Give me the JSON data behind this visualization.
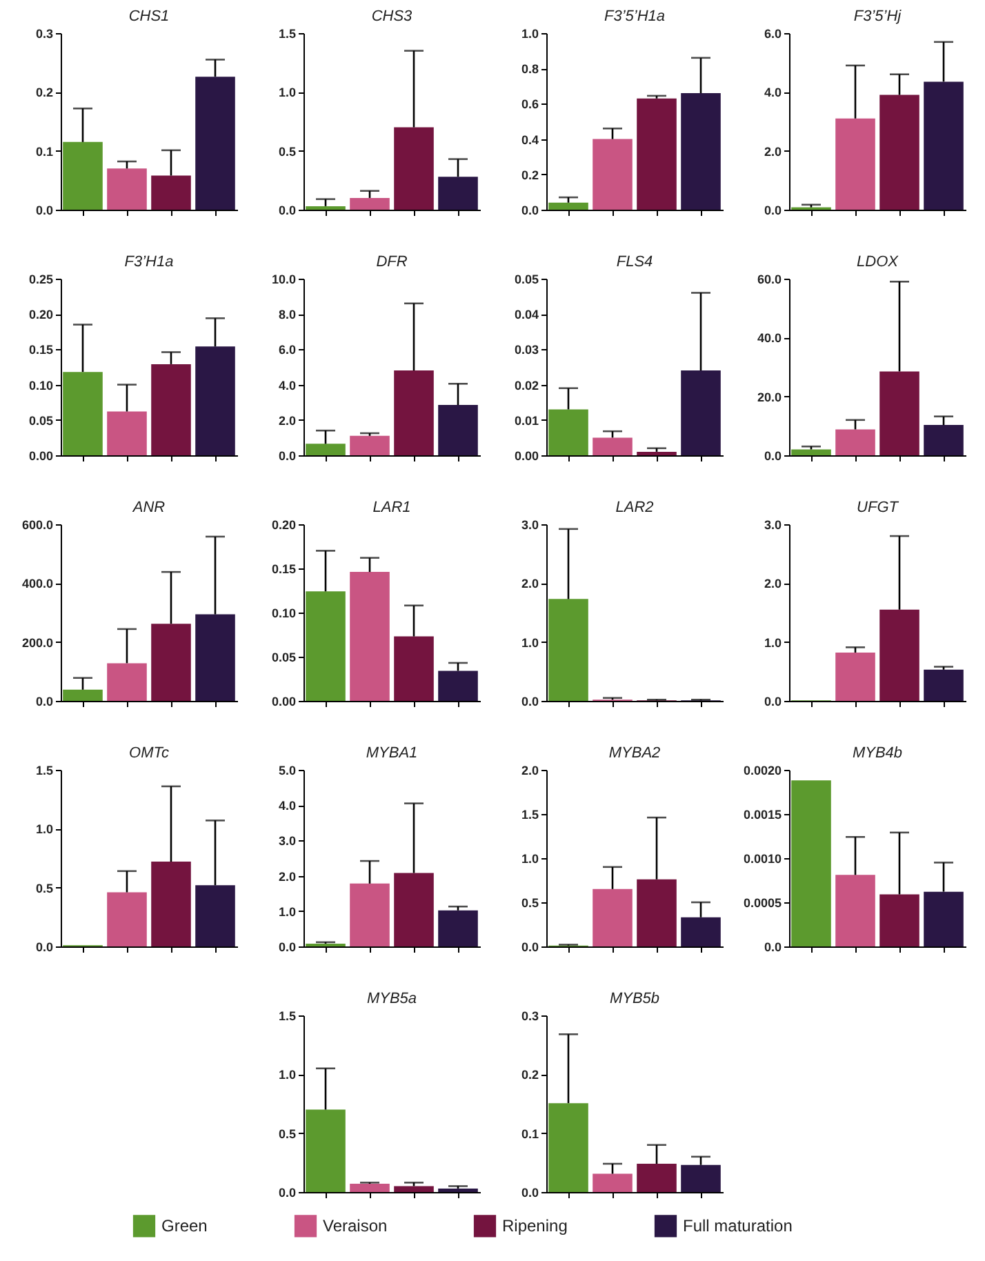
{
  "chart_data": [
    {
      "type": "bar",
      "title": "CHS1",
      "categories": [
        null
      ],
      "ylim": [
        0,
        0.3
      ],
      "yticks": [
        {
          "value": 0,
          "label": "0.0"
        },
        0.1,
        0.2,
        0.3
      ],
      "series": [
        {
          "color": "#5c9a2e",
          "values": [
            0.115
          ],
          "errors": [
            [
              0.115,
              0.172
            ]
          ]
        },
        {
          "color": "#c95583",
          "values": [
            0.07
          ],
          "errors": [
            [
              0.07,
              0.082
            ]
          ]
        },
        {
          "color": "#74143f",
          "values": [
            0.058
          ],
          "errors": [
            [
              0.058,
              0.101
            ]
          ]
        },
        {
          "color": "#2a1745",
          "values": [
            0.226
          ],
          "errors": [
            [
              0.226,
              0.255
            ]
          ]
        }
      ]
    },
    {
      "type": "bar",
      "title": "CHS3",
      "categories": [
        null
      ],
      "ylim": [
        0,
        1.5
      ],
      "yticks": [
        {
          "value": 0,
          "label": "0.0"
        },
        0.5,
        {
          "value": 1,
          "label": "1.0"
        },
        1.5
      ],
      "series": [
        {
          "color": "#5c9a2e",
          "values": [
            0.03
          ],
          "errors": [
            [
              0.03,
              0.09
            ]
          ]
        },
        {
          "color": "#c95583",
          "values": [
            0.1
          ],
          "errors": [
            [
              0.1,
              0.16
            ]
          ]
        },
        {
          "color": "#74143f",
          "values": [
            0.7
          ],
          "errors": [
            [
              0.7,
              1.35
            ]
          ]
        },
        {
          "color": "#2a1745",
          "values": [
            0.28
          ],
          "errors": [
            [
              0.28,
              0.43
            ]
          ]
        }
      ]
    },
    {
      "type": "bar",
      "title": "F3’5’H1a",
      "categories": [
        null
      ],
      "ylim": [
        0,
        1
      ],
      "yticks": [
        {
          "value": 0,
          "label": "0.0"
        },
        0.2,
        0.4,
        0.6,
        0.8,
        {
          "value": 1,
          "label": "1.0"
        }
      ],
      "series": [
        {
          "color": "#5c9a2e",
          "values": [
            0.04
          ],
          "errors": [
            [
              0.04,
              0.07
            ]
          ]
        },
        {
          "color": "#c95583",
          "values": [
            0.4
          ],
          "errors": [
            [
              0.4,
              0.46
            ]
          ]
        },
        {
          "color": "#74143f",
          "values": [
            0.63
          ],
          "errors": [
            [
              0.63,
              0.645
            ]
          ]
        },
        {
          "color": "#2a1745",
          "values": [
            0.66
          ],
          "errors": [
            [
              0.66,
              0.86
            ]
          ]
        }
      ]
    },
    {
      "type": "bar",
      "title": "F3’5’Hj",
      "categories": [
        null
      ],
      "ylim": [
        0,
        6
      ],
      "yticks": [
        {
          "value": 0,
          "label": "0.0"
        },
        {
          "value": 2,
          "label": "2.0"
        },
        {
          "value": 4,
          "label": "4.0"
        },
        {
          "value": 6,
          "label": "6.0"
        }
      ],
      "series": [
        {
          "color": "#5c9a2e",
          "values": [
            0.08
          ],
          "errors": [
            [
              0.08,
              0.17
            ]
          ]
        },
        {
          "color": "#c95583",
          "values": [
            3.1
          ],
          "errors": [
            [
              3.1,
              4.9
            ]
          ]
        },
        {
          "color": "#74143f",
          "values": [
            3.9
          ],
          "errors": [
            [
              3.9,
              4.6
            ]
          ]
        },
        {
          "color": "#2a1745",
          "values": [
            4.35
          ],
          "errors": [
            [
              4.35,
              5.7
            ]
          ]
        }
      ]
    },
    {
      "type": "bar",
      "title": "F3’H1a",
      "categories": [
        null
      ],
      "ylim": [
        0,
        0.25
      ],
      "yticks": [
        {
          "value": 0,
          "label": "0.00"
        },
        0.05,
        {
          "value": 0.1,
          "label": "0.10"
        },
        0.15,
        {
          "value": 0.2,
          "label": "0.20"
        },
        0.25
      ],
      "series": [
        {
          "color": "#5c9a2e",
          "values": [
            0.118
          ],
          "errors": [
            [
              0.118,
              0.185
            ]
          ]
        },
        {
          "color": "#c95583",
          "values": [
            0.062
          ],
          "errors": [
            [
              0.062,
              0.1
            ]
          ]
        },
        {
          "color": "#74143f",
          "values": [
            0.129
          ],
          "errors": [
            [
              0.129,
              0.146
            ]
          ]
        },
        {
          "color": "#2a1745",
          "values": [
            0.154
          ],
          "errors": [
            [
              0.154,
              0.194
            ]
          ]
        }
      ]
    },
    {
      "type": "bar",
      "title": "DFR",
      "categories": [
        null
      ],
      "ylim": [
        0,
        10
      ],
      "yticks": [
        {
          "value": 0,
          "label": "0.0"
        },
        {
          "value": 2,
          "label": "2.0"
        },
        {
          "value": 4,
          "label": "4.0"
        },
        {
          "value": 6,
          "label": "6.0"
        },
        {
          "value": 8,
          "label": "8.0"
        },
        {
          "value": 10,
          "label": "10.0"
        }
      ],
      "series": [
        {
          "color": "#5c9a2e",
          "values": [
            0.65
          ],
          "errors": [
            [
              0.65,
              1.4
            ]
          ]
        },
        {
          "color": "#c95583",
          "values": [
            1.1
          ],
          "errors": [
            [
              1.1,
              1.25
            ]
          ]
        },
        {
          "color": "#74143f",
          "values": [
            4.8
          ],
          "errors": [
            [
              4.8,
              8.6
            ]
          ]
        },
        {
          "color": "#2a1745",
          "values": [
            2.85
          ],
          "errors": [
            [
              2.85,
              4.05
            ]
          ]
        }
      ]
    },
    {
      "type": "bar",
      "title": "FLS4",
      "categories": [
        null
      ],
      "ylim": [
        0,
        0.05
      ],
      "yticks": [
        {
          "value": 0,
          "label": "0.00"
        },
        0.01,
        0.02,
        0.03,
        0.04,
        0.05
      ],
      "series": [
        {
          "color": "#5c9a2e",
          "values": [
            0.013
          ],
          "errors": [
            [
              0.013,
              0.019
            ]
          ]
        },
        {
          "color": "#c95583",
          "values": [
            0.005
          ],
          "errors": [
            [
              0.005,
              0.0068
            ]
          ]
        },
        {
          "color": "#74143f",
          "values": [
            0.001
          ],
          "errors": [
            [
              0.001,
              0.002
            ]
          ]
        },
        {
          "color": "#2a1745",
          "values": [
            0.024
          ],
          "errors": [
            [
              0.024,
              0.046
            ]
          ]
        }
      ]
    },
    {
      "type": "bar",
      "title": "LDOX",
      "categories": [
        null
      ],
      "ylim": [
        0,
        60
      ],
      "yticks": [
        {
          "value": 0,
          "label": "0.0"
        },
        {
          "value": 20,
          "label": "20.0"
        },
        {
          "value": 40,
          "label": "40.0"
        },
        {
          "value": 60,
          "label": "60.0"
        }
      ],
      "series": [
        {
          "color": "#5c9a2e",
          "values": [
            2
          ],
          "errors": [
            [
              2,
              3
            ]
          ]
        },
        {
          "color": "#c95583",
          "values": [
            8.8
          ],
          "errors": [
            [
              8.8,
              12
            ]
          ]
        },
        {
          "color": "#74143f",
          "values": [
            28.5
          ],
          "errors": [
            [
              28.5,
              59
            ]
          ]
        },
        {
          "color": "#2a1745",
          "values": [
            10.3
          ],
          "errors": [
            [
              10.3,
              13.2
            ]
          ]
        }
      ]
    },
    {
      "type": "bar",
      "title": "ANR",
      "categories": [
        null
      ],
      "ylim": [
        0,
        600
      ],
      "yticks": [
        {
          "value": 0,
          "label": "0.0"
        },
        {
          "value": 200,
          "label": "200.0"
        },
        {
          "value": 400,
          "label": "400.0"
        },
        {
          "value": 600,
          "label": "600.0"
        }
      ],
      "series": [
        {
          "color": "#5c9a2e",
          "values": [
            38
          ],
          "errors": [
            [
              38,
              78
            ]
          ]
        },
        {
          "color": "#c95583",
          "values": [
            128
          ],
          "errors": [
            [
              128,
              244
            ]
          ]
        },
        {
          "color": "#74143f",
          "values": [
            262
          ],
          "errors": [
            [
              262,
              438
            ]
          ]
        },
        {
          "color": "#2a1745",
          "values": [
            294
          ],
          "errors": [
            [
              294,
              558
            ]
          ]
        }
      ]
    },
    {
      "type": "bar",
      "title": "LAR1",
      "categories": [
        null
      ],
      "ylim": [
        0,
        0.2
      ],
      "yticks": [
        {
          "value": 0,
          "label": "0.00"
        },
        0.05,
        {
          "value": 0.1,
          "label": "0.10"
        },
        0.15,
        {
          "value": 0.2,
          "label": "0.20"
        }
      ],
      "series": [
        {
          "color": "#5c9a2e",
          "values": [
            0.124
          ],
          "errors": [
            [
              0.124,
              0.17
            ]
          ]
        },
        {
          "color": "#c95583",
          "values": [
            0.146
          ],
          "errors": [
            [
              0.146,
              0.162
            ]
          ]
        },
        {
          "color": "#74143f",
          "values": [
            0.073
          ],
          "errors": [
            [
              0.073,
              0.108
            ]
          ]
        },
        {
          "color": "#2a1745",
          "values": [
            0.034
          ],
          "errors": [
            [
              0.034,
              0.043
            ]
          ]
        }
      ]
    },
    {
      "type": "bar",
      "title": "LAR2",
      "categories": [
        null
      ],
      "ylim": [
        0,
        3
      ],
      "yticks": [
        {
          "value": 0,
          "label": "0.0"
        },
        {
          "value": 1,
          "label": "1.0"
        },
        {
          "value": 2,
          "label": "2.0"
        },
        {
          "value": 3,
          "label": "3.0"
        }
      ],
      "series": [
        {
          "color": "#5c9a2e",
          "values": [
            1.73
          ],
          "errors": [
            [
              1.73,
              2.92
            ]
          ]
        },
        {
          "color": "#c95583",
          "values": [
            0.02
          ],
          "errors": [
            [
              0.02,
              0.05
            ]
          ]
        },
        {
          "color": "#74143f",
          "values": [
            0.01
          ],
          "errors": [
            [
              0.01,
              0.02
            ]
          ]
        },
        {
          "color": "#2a1745",
          "values": [
            0.01
          ],
          "errors": [
            [
              0.01,
              0.02
            ]
          ]
        }
      ]
    },
    {
      "type": "bar",
      "title": "UFGT",
      "categories": [
        null
      ],
      "ylim": [
        0,
        3
      ],
      "yticks": [
        {
          "value": 0,
          "label": "0.0"
        },
        {
          "value": 1,
          "label": "1.0"
        },
        {
          "value": 2,
          "label": "2.0"
        },
        {
          "value": 3,
          "label": "3.0"
        }
      ],
      "series": [
        {
          "color": "#5c9a2e",
          "values": [
            0.01
          ],
          "errors": [
            null
          ]
        },
        {
          "color": "#c95583",
          "values": [
            0.82
          ],
          "errors": [
            [
              0.82,
              0.91
            ]
          ]
        },
        {
          "color": "#74143f",
          "values": [
            1.55
          ],
          "errors": [
            [
              1.55,
              2.8
            ]
          ]
        },
        {
          "color": "#2a1745",
          "values": [
            0.53
          ],
          "errors": [
            [
              0.53,
              0.58
            ]
          ]
        }
      ]
    },
    {
      "type": "bar",
      "title": "OMTc",
      "categories": [
        null
      ],
      "ylim": [
        0,
        1.5
      ],
      "yticks": [
        {
          "value": 0,
          "label": "0.0"
        },
        0.5,
        {
          "value": 1,
          "label": "1.0"
        },
        1.5
      ],
      "series": [
        {
          "color": "#5c9a2e",
          "values": [
            0.01
          ],
          "errors": [
            null
          ]
        },
        {
          "color": "#c95583",
          "values": [
            0.46
          ],
          "errors": [
            [
              0.46,
              0.64
            ]
          ]
        },
        {
          "color": "#74143f",
          "values": [
            0.72
          ],
          "errors": [
            [
              0.72,
              1.36
            ]
          ]
        },
        {
          "color": "#2a1745",
          "values": [
            0.52
          ],
          "errors": [
            [
              0.52,
              1.07
            ]
          ]
        }
      ]
    },
    {
      "type": "bar",
      "title": "MYBA1",
      "categories": [
        null
      ],
      "ylim": [
        0,
        5
      ],
      "yticks": [
        {
          "value": 0,
          "label": "0.0"
        },
        {
          "value": 1,
          "label": "1.0"
        },
        {
          "value": 2,
          "label": "2.0"
        },
        {
          "value": 3,
          "label": "3.0"
        },
        {
          "value": 4,
          "label": "4.0"
        },
        {
          "value": 5,
          "label": "5.0"
        }
      ],
      "series": [
        {
          "color": "#5c9a2e",
          "values": [
            0.08
          ],
          "errors": [
            [
              0.08,
              0.12
            ]
          ]
        },
        {
          "color": "#c95583",
          "values": [
            1.78
          ],
          "errors": [
            [
              1.78,
              2.42
            ]
          ]
        },
        {
          "color": "#74143f",
          "values": [
            2.08
          ],
          "errors": [
            [
              2.08,
              4.05
            ]
          ]
        },
        {
          "color": "#2a1745",
          "values": [
            1.02
          ],
          "errors": [
            [
              1.02,
              1.13
            ]
          ]
        }
      ]
    },
    {
      "type": "bar",
      "title": "MYBA2",
      "categories": [
        null
      ],
      "ylim": [
        0,
        2
      ],
      "yticks": [
        {
          "value": 0,
          "label": "0.0"
        },
        0.5,
        {
          "value": 1,
          "label": "1.0"
        },
        1.5,
        {
          "value": 2,
          "label": "2.0"
        }
      ],
      "series": [
        {
          "color": "#5c9a2e",
          "values": [
            0.01
          ],
          "errors": [
            [
              0.01,
              0.02
            ]
          ]
        },
        {
          "color": "#c95583",
          "values": [
            0.65
          ],
          "errors": [
            [
              0.65,
              0.9
            ]
          ]
        },
        {
          "color": "#74143f",
          "values": [
            0.76
          ],
          "errors": [
            [
              0.76,
              1.46
            ]
          ]
        },
        {
          "color": "#2a1745",
          "values": [
            0.33
          ],
          "errors": [
            [
              0.33,
              0.5
            ]
          ]
        }
      ]
    },
    {
      "type": "bar",
      "title": "MYB4b",
      "categories": [
        null
      ],
      "ylim": [
        0,
        0.002
      ],
      "yticks": [
        {
          "value": 0,
          "label": "0.0"
        },
        0.0005,
        {
          "value": 0.001,
          "label": "0.0010"
        },
        0.0015,
        {
          "value": 0.002,
          "label": "0.0020"
        }
      ],
      "series": [
        {
          "color": "#5c9a2e",
          "values": [
            0.00188
          ],
          "errors": [
            null
          ]
        },
        {
          "color": "#c95583",
          "values": [
            0.00081
          ],
          "errors": [
            [
              0.00081,
              0.00124
            ]
          ]
        },
        {
          "color": "#74143f",
          "values": [
            0.00059
          ],
          "errors": [
            [
              0.00059,
              0.00129
            ]
          ]
        },
        {
          "color": "#2a1745",
          "values": [
            0.00062
          ],
          "errors": [
            [
              0.00062,
              0.00095
            ]
          ]
        }
      ]
    },
    {
      "type": "bar",
      "title": "MYB5a",
      "categories": [
        null
      ],
      "ylim": [
        0,
        1.5
      ],
      "yticks": [
        {
          "value": 0,
          "label": "0.0"
        },
        0.5,
        {
          "value": 1,
          "label": "1.0"
        },
        1.5
      ],
      "series": [
        {
          "color": "#5c9a2e",
          "values": [
            0.7
          ],
          "errors": [
            [
              0.7,
              1.05
            ]
          ]
        },
        {
          "color": "#c95583",
          "values": [
            0.07
          ],
          "errors": [
            [
              0.07,
              0.08
            ]
          ]
        },
        {
          "color": "#74143f",
          "values": [
            0.05
          ],
          "errors": [
            [
              0.05,
              0.08
            ]
          ]
        },
        {
          "color": "#2a1745",
          "values": [
            0.03
          ],
          "errors": [
            [
              0.03,
              0.05
            ]
          ]
        }
      ]
    },
    {
      "type": "bar",
      "title": "MYB5b",
      "categories": [
        null
      ],
      "ylim": [
        0,
        0.3
      ],
      "yticks": [
        {
          "value": 0,
          "label": "0.0"
        },
        0.1,
        0.2,
        0.3
      ],
      "legend": "bottom",
      "series": [
        {
          "name": "Green",
          "color": "#5c9a2e",
          "values": [
            0.151
          ],
          "errors": [
            [
              0.151,
              0.268
            ]
          ]
        },
        {
          "name": "Veraison",
          "color": "#c95583",
          "values": [
            0.031
          ],
          "errors": [
            [
              0.031,
              0.048
            ]
          ]
        },
        {
          "name": "Ripening",
          "color": "#74143f",
          "values": [
            0.048
          ],
          "errors": [
            [
              0.048,
              0.08
            ]
          ]
        },
        {
          "name": "Full maturation",
          "color": "#2a1745",
          "values": [
            0.046
          ],
          "errors": [
            [
              0.046,
              0.06
            ]
          ]
        }
      ]
    }
  ]
}
